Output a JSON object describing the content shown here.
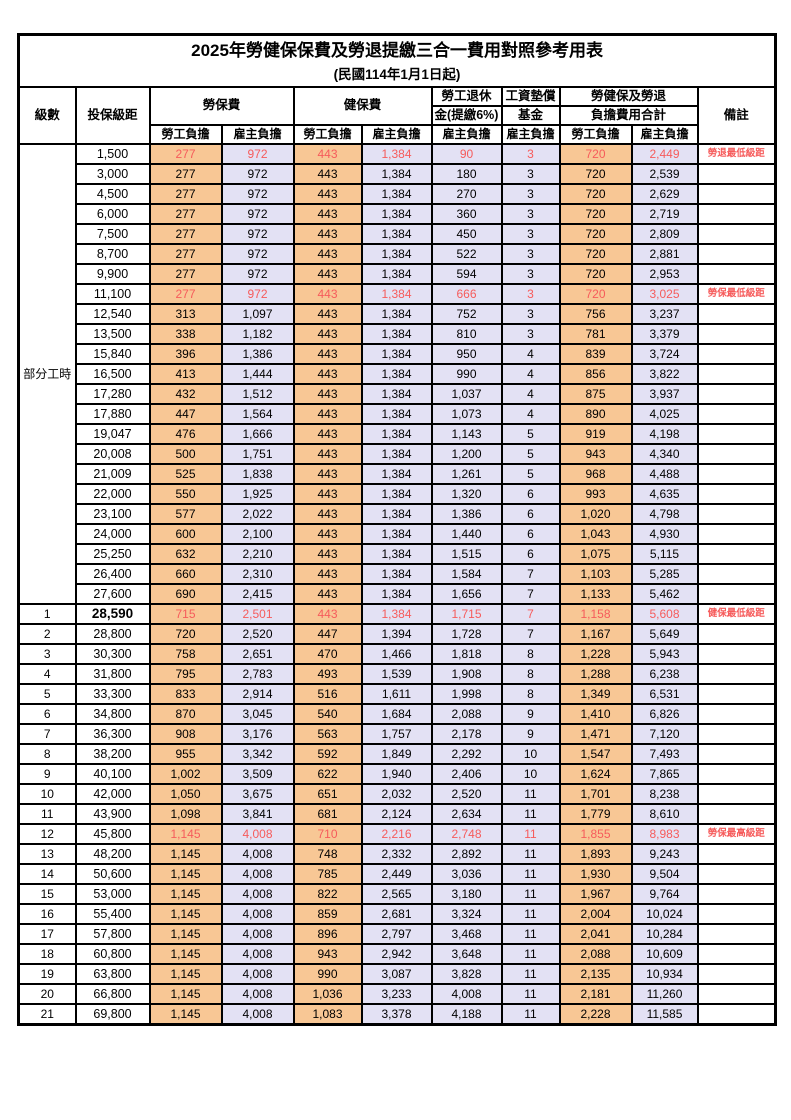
{
  "title": {
    "main": "2025年勞健保保費及勞退提繳三合一費用對照參考用表",
    "sub": "(民國114年1月1日起)"
  },
  "header": {
    "level": "級數",
    "bracket": "投保級距",
    "labor_fee": "勞保費",
    "health_fee": "健保費",
    "pension_line1": "勞工退休",
    "pension_line2": "金(提繳6%)",
    "wage_fund_line1": "工資墊償",
    "wage_fund_line2": "基金",
    "total_line1": "勞健保及勞退",
    "total_line2": "負擔費用合計",
    "note": "備註",
    "employee_label": "勞工負擔",
    "employer_label": "雇主負擔"
  },
  "colors": {
    "employee_fill": "#f8c795",
    "employer_fill": "#e3e1f4",
    "highlight_red": "#f65b5b"
  },
  "table": {
    "part_time_label": "部分工時",
    "part_time_row_count": 23,
    "rows": [
      {
        "level": "",
        "bracket": "1,500",
        "v": [
          "277",
          "972",
          "443",
          "1,384",
          "90",
          "3",
          "720",
          "2,449"
        ],
        "note": "勞退最低級距",
        "red": true
      },
      {
        "level": "",
        "bracket": "3,000",
        "v": [
          "277",
          "972",
          "443",
          "1,384",
          "180",
          "3",
          "720",
          "2,539"
        ],
        "note": "",
        "red": false
      },
      {
        "level": "",
        "bracket": "4,500",
        "v": [
          "277",
          "972",
          "443",
          "1,384",
          "270",
          "3",
          "720",
          "2,629"
        ],
        "note": "",
        "red": false
      },
      {
        "level": "",
        "bracket": "6,000",
        "v": [
          "277",
          "972",
          "443",
          "1,384",
          "360",
          "3",
          "720",
          "2,719"
        ],
        "note": "",
        "red": false
      },
      {
        "level": "",
        "bracket": "7,500",
        "v": [
          "277",
          "972",
          "443",
          "1,384",
          "450",
          "3",
          "720",
          "2,809"
        ],
        "note": "",
        "red": false
      },
      {
        "level": "",
        "bracket": "8,700",
        "v": [
          "277",
          "972",
          "443",
          "1,384",
          "522",
          "3",
          "720",
          "2,881"
        ],
        "note": "",
        "red": false
      },
      {
        "level": "",
        "bracket": "9,900",
        "v": [
          "277",
          "972",
          "443",
          "1,384",
          "594",
          "3",
          "720",
          "2,953"
        ],
        "note": "",
        "red": false
      },
      {
        "level": "",
        "bracket": "11,100",
        "v": [
          "277",
          "972",
          "443",
          "1,384",
          "666",
          "3",
          "720",
          "3,025"
        ],
        "note": "勞保最低級距",
        "red": true
      },
      {
        "level": "",
        "bracket": "12,540",
        "v": [
          "313",
          "1,097",
          "443",
          "1,384",
          "752",
          "3",
          "756",
          "3,237"
        ],
        "note": "",
        "red": false
      },
      {
        "level": "",
        "bracket": "13,500",
        "v": [
          "338",
          "1,182",
          "443",
          "1,384",
          "810",
          "3",
          "781",
          "3,379"
        ],
        "note": "",
        "red": false
      },
      {
        "level": "",
        "bracket": "15,840",
        "v": [
          "396",
          "1,386",
          "443",
          "1,384",
          "950",
          "4",
          "839",
          "3,724"
        ],
        "note": "",
        "red": false
      },
      {
        "level": "",
        "bracket": "16,500",
        "v": [
          "413",
          "1,444",
          "443",
          "1,384",
          "990",
          "4",
          "856",
          "3,822"
        ],
        "note": "",
        "red": false
      },
      {
        "level": "",
        "bracket": "17,280",
        "v": [
          "432",
          "1,512",
          "443",
          "1,384",
          "1,037",
          "4",
          "875",
          "3,937"
        ],
        "note": "",
        "red": false
      },
      {
        "level": "",
        "bracket": "17,880",
        "v": [
          "447",
          "1,564",
          "443",
          "1,384",
          "1,073",
          "4",
          "890",
          "4,025"
        ],
        "note": "",
        "red": false
      },
      {
        "level": "",
        "bracket": "19,047",
        "v": [
          "476",
          "1,666",
          "443",
          "1,384",
          "1,143",
          "5",
          "919",
          "4,198"
        ],
        "note": "",
        "red": false
      },
      {
        "level": "",
        "bracket": "20,008",
        "v": [
          "500",
          "1,751",
          "443",
          "1,384",
          "1,200",
          "5",
          "943",
          "4,340"
        ],
        "note": "",
        "red": false
      },
      {
        "level": "",
        "bracket": "21,009",
        "v": [
          "525",
          "1,838",
          "443",
          "1,384",
          "1,261",
          "5",
          "968",
          "4,488"
        ],
        "note": "",
        "red": false
      },
      {
        "level": "",
        "bracket": "22,000",
        "v": [
          "550",
          "1,925",
          "443",
          "1,384",
          "1,320",
          "6",
          "993",
          "4,635"
        ],
        "note": "",
        "red": false
      },
      {
        "level": "",
        "bracket": "23,100",
        "v": [
          "577",
          "2,022",
          "443",
          "1,384",
          "1,386",
          "6",
          "1,020",
          "4,798"
        ],
        "note": "",
        "red": false
      },
      {
        "level": "",
        "bracket": "24,000",
        "v": [
          "600",
          "2,100",
          "443",
          "1,384",
          "1,440",
          "6",
          "1,043",
          "4,930"
        ],
        "note": "",
        "red": false
      },
      {
        "level": "",
        "bracket": "25,250",
        "v": [
          "632",
          "2,210",
          "443",
          "1,384",
          "1,515",
          "6",
          "1,075",
          "5,115"
        ],
        "note": "",
        "red": false
      },
      {
        "level": "",
        "bracket": "26,400",
        "v": [
          "660",
          "2,310",
          "443",
          "1,384",
          "1,584",
          "7",
          "1,103",
          "5,285"
        ],
        "note": "",
        "red": false
      },
      {
        "level": "",
        "bracket": "27,600",
        "v": [
          "690",
          "2,415",
          "443",
          "1,384",
          "1,656",
          "7",
          "1,133",
          "5,462"
        ],
        "note": "",
        "red": false
      },
      {
        "level": "1",
        "bracket": "28,590",
        "bracket_bold": true,
        "v": [
          "715",
          "2,501",
          "443",
          "1,384",
          "1,715",
          "7",
          "1,158",
          "5,608"
        ],
        "note": "健保最低級距",
        "red": true
      },
      {
        "level": "2",
        "bracket": "28,800",
        "v": [
          "720",
          "2,520",
          "447",
          "1,394",
          "1,728",
          "7",
          "1,167",
          "5,649"
        ],
        "note": "",
        "red": false
      },
      {
        "level": "3",
        "bracket": "30,300",
        "v": [
          "758",
          "2,651",
          "470",
          "1,466",
          "1,818",
          "8",
          "1,228",
          "5,943"
        ],
        "note": "",
        "red": false
      },
      {
        "level": "4",
        "bracket": "31,800",
        "v": [
          "795",
          "2,783",
          "493",
          "1,539",
          "1,908",
          "8",
          "1,288",
          "6,238"
        ],
        "note": "",
        "red": false
      },
      {
        "level": "5",
        "bracket": "33,300",
        "v": [
          "833",
          "2,914",
          "516",
          "1,611",
          "1,998",
          "8",
          "1,349",
          "6,531"
        ],
        "note": "",
        "red": false
      },
      {
        "level": "6",
        "bracket": "34,800",
        "v": [
          "870",
          "3,045",
          "540",
          "1,684",
          "2,088",
          "9",
          "1,410",
          "6,826"
        ],
        "note": "",
        "red": false
      },
      {
        "level": "7",
        "bracket": "36,300",
        "v": [
          "908",
          "3,176",
          "563",
          "1,757",
          "2,178",
          "9",
          "1,471",
          "7,120"
        ],
        "note": "",
        "red": false
      },
      {
        "level": "8",
        "bracket": "38,200",
        "v": [
          "955",
          "3,342",
          "592",
          "1,849",
          "2,292",
          "10",
          "1,547",
          "7,493"
        ],
        "note": "",
        "red": false
      },
      {
        "level": "9",
        "bracket": "40,100",
        "v": [
          "1,002",
          "3,509",
          "622",
          "1,940",
          "2,406",
          "10",
          "1,624",
          "7,865"
        ],
        "note": "",
        "red": false
      },
      {
        "level": "10",
        "bracket": "42,000",
        "v": [
          "1,050",
          "3,675",
          "651",
          "2,032",
          "2,520",
          "11",
          "1,701",
          "8,238"
        ],
        "note": "",
        "red": false
      },
      {
        "level": "11",
        "bracket": "43,900",
        "v": [
          "1,098",
          "3,841",
          "681",
          "2,124",
          "2,634",
          "11",
          "1,779",
          "8,610"
        ],
        "note": "",
        "red": false
      },
      {
        "level": "12",
        "bracket": "45,800",
        "v": [
          "1,145",
          "4,008",
          "710",
          "2,216",
          "2,748",
          "11",
          "1,855",
          "8,983"
        ],
        "note": "勞保最高級距",
        "red": true
      },
      {
        "level": "13",
        "bracket": "48,200",
        "v": [
          "1,145",
          "4,008",
          "748",
          "2,332",
          "2,892",
          "11",
          "1,893",
          "9,243"
        ],
        "note": "",
        "red": false
      },
      {
        "level": "14",
        "bracket": "50,600",
        "v": [
          "1,145",
          "4,008",
          "785",
          "2,449",
          "3,036",
          "11",
          "1,930",
          "9,504"
        ],
        "note": "",
        "red": false
      },
      {
        "level": "15",
        "bracket": "53,000",
        "v": [
          "1,145",
          "4,008",
          "822",
          "2,565",
          "3,180",
          "11",
          "1,967",
          "9,764"
        ],
        "note": "",
        "red": false
      },
      {
        "level": "16",
        "bracket": "55,400",
        "v": [
          "1,145",
          "4,008",
          "859",
          "2,681",
          "3,324",
          "11",
          "2,004",
          "10,024"
        ],
        "note": "",
        "red": false
      },
      {
        "level": "17",
        "bracket": "57,800",
        "v": [
          "1,145",
          "4,008",
          "896",
          "2,797",
          "3,468",
          "11",
          "2,041",
          "10,284"
        ],
        "note": "",
        "red": false
      },
      {
        "level": "18",
        "bracket": "60,800",
        "v": [
          "1,145",
          "4,008",
          "943",
          "2,942",
          "3,648",
          "11",
          "2,088",
          "10,609"
        ],
        "note": "",
        "red": false
      },
      {
        "level": "19",
        "bracket": "63,800",
        "v": [
          "1,145",
          "4,008",
          "990",
          "3,087",
          "3,828",
          "11",
          "2,135",
          "10,934"
        ],
        "note": "",
        "red": false
      },
      {
        "level": "20",
        "bracket": "66,800",
        "v": [
          "1,145",
          "4,008",
          "1,036",
          "3,233",
          "4,008",
          "11",
          "2,181",
          "11,260"
        ],
        "note": "",
        "red": false
      },
      {
        "level": "21",
        "bracket": "69,800",
        "v": [
          "1,145",
          "4,008",
          "1,083",
          "3,378",
          "4,188",
          "11",
          "2,228",
          "11,585"
        ],
        "note": "",
        "red": false
      }
    ]
  }
}
